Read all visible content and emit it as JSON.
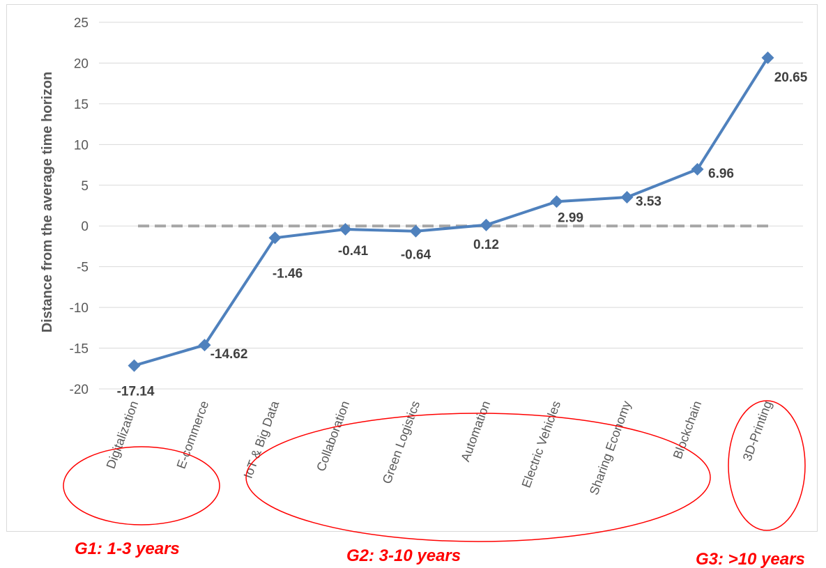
{
  "chart_data": {
    "type": "line",
    "title": "",
    "ylabel": "Distance from the average time horizon",
    "xlabel": "",
    "ylim": [
      -20,
      25
    ],
    "yticks": [
      25,
      20,
      15,
      10,
      5,
      0,
      -5,
      -10,
      -15,
      -20
    ],
    "grid": true,
    "legend": "none",
    "categories": [
      "Digitalization",
      "E-commerce",
      "IoT & Big Data",
      "Collaboration",
      "Green Logistics",
      "Automation",
      "Electric Vehicles",
      "Sharing Economy",
      "Blockchain",
      "3D-Printing"
    ],
    "series": [
      {
        "values": [
          -17.14,
          -14.62,
          -1.46,
          -0.41,
          -0.64,
          0.12,
          2.99,
          3.53,
          6.96,
          20.65
        ],
        "labels": [
          "-17.14",
          "-14.62",
          "-1.46",
          "-0.41",
          "-0.64",
          "0.12",
          "2.99",
          "3.53",
          "6.96",
          "20.65"
        ],
        "color": "#4f81bd",
        "marker": "diamond"
      }
    ],
    "reference_line": {
      "value": 0,
      "style": "dashed",
      "color": "#a6a6a6"
    },
    "groups": [
      {
        "label": "G1: 1-3 years",
        "categories": [
          "Digitalization",
          "E-commerce"
        ],
        "color": "#ff0000"
      },
      {
        "label": "G2: 3-10 years",
        "categories": [
          "IoT & Big Data",
          "Collaboration",
          "Green Logistics",
          "Automation",
          "Electric Vehicles",
          "Sharing Economy",
          "Blockchain"
        ],
        "color": "#ff0000"
      },
      {
        "label": "G3: >10 years",
        "categories": [
          "3D-Printing"
        ],
        "color": "#ff0000"
      }
    ]
  }
}
